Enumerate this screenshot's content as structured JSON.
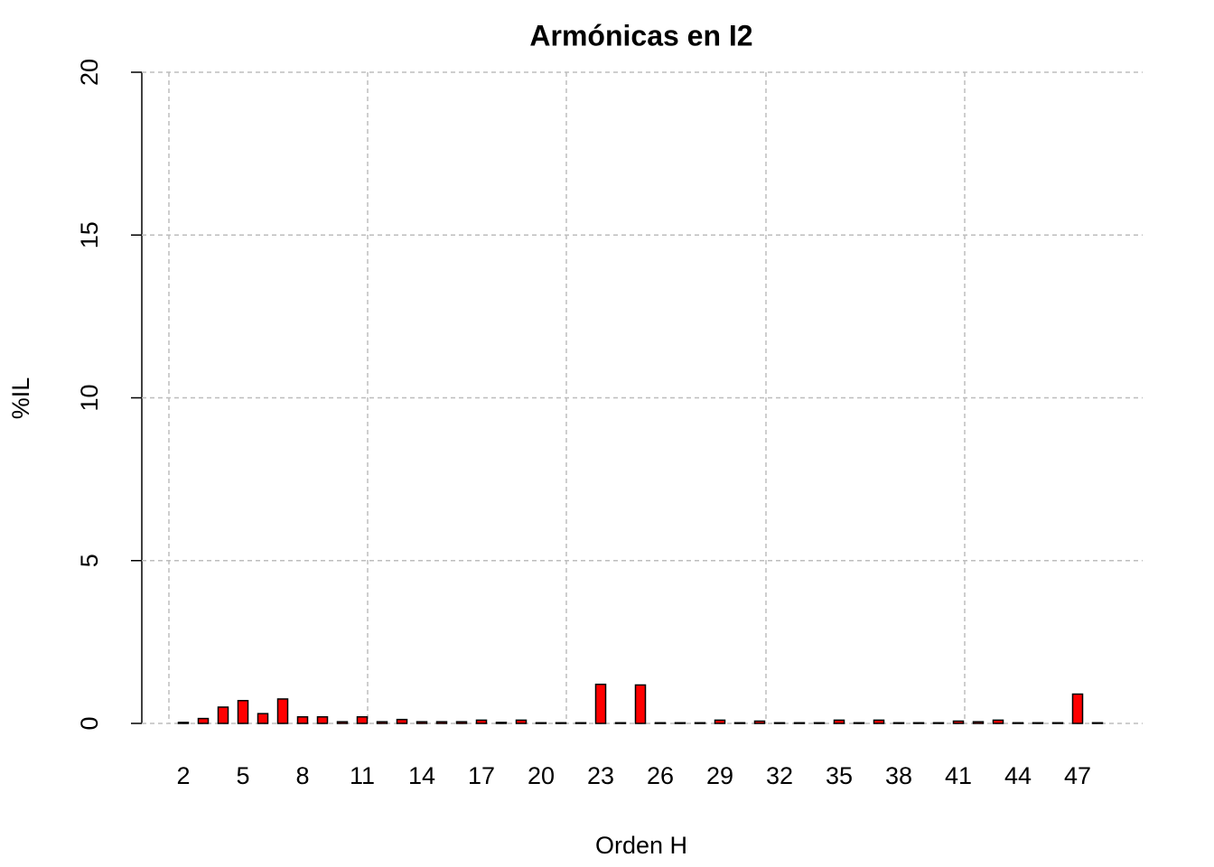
{
  "chart_data": {
    "type": "bar",
    "title": "Armónicas en I2",
    "x_label": "Orden H",
    "y_label": "%IL",
    "categories": [
      "2",
      null,
      null,
      "5",
      null,
      null,
      "8",
      null,
      null,
      "11",
      null,
      null,
      "14",
      null,
      null,
      "17",
      null,
      null,
      "20",
      null,
      null,
      "23",
      null,
      null,
      "26",
      null,
      null,
      "29",
      null,
      null,
      "32",
      null,
      null,
      "35",
      null,
      null,
      "38",
      null,
      null,
      "41",
      null,
      null,
      "44",
      null,
      null,
      "47",
      null
    ],
    "values": [
      0.03,
      0.15,
      0.5,
      0.7,
      0.3,
      0.75,
      0.2,
      0.2,
      0.05,
      0.2,
      0.05,
      0.12,
      0.05,
      0.05,
      0.05,
      0.1,
      0.03,
      0.1,
      0.02,
      0.02,
      0.02,
      1.2,
      0.02,
      1.18,
      0.02,
      0.02,
      0.02,
      0.1,
      0.02,
      0.07,
      0.02,
      0.02,
      0.02,
      0.1,
      0.02,
      0.1,
      0.02,
      0.02,
      0.02,
      0.07,
      0.05,
      0.1,
      0.02,
      0.02,
      0.02,
      0.9,
      0.02
    ],
    "color": "#ff0000",
    "ylim": [
      0,
      20
    ],
    "yticks": [
      0,
      5,
      10,
      15,
      20
    ],
    "grid": true
  }
}
